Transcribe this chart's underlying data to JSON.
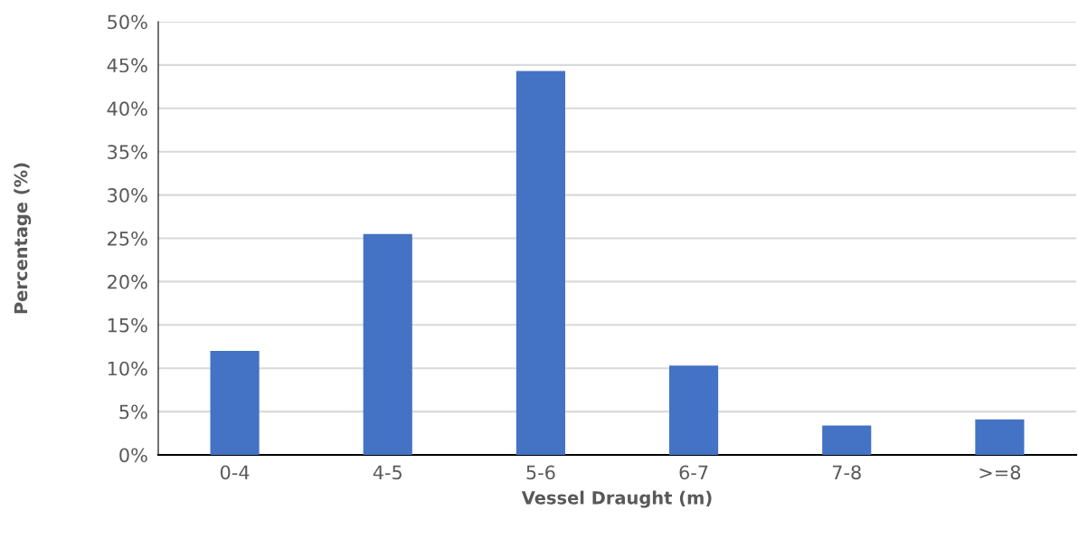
{
  "chart_data": {
    "type": "bar",
    "xlabel": "Vessel Draught (m)",
    "ylabel": "Percentage (%)",
    "categories": [
      "0-4",
      "4-5",
      "5-6",
      "6-7",
      "7-8",
      ">=8"
    ],
    "values": [
      12.0,
      25.5,
      44.3,
      10.3,
      3.4,
      4.1
    ],
    "color": "#4472c4",
    "ylim": [
      0,
      50
    ],
    "yticks": [
      {
        "value": 0,
        "label": "0%"
      },
      {
        "value": 5,
        "label": "5%"
      },
      {
        "value": 10,
        "label": "10%"
      },
      {
        "value": 15,
        "label": "15%"
      },
      {
        "value": 20,
        "label": "20%"
      },
      {
        "value": 25,
        "label": "25%"
      },
      {
        "value": 30,
        "label": "30%"
      },
      {
        "value": 35,
        "label": "35%"
      },
      {
        "value": 40,
        "label": "40%"
      },
      {
        "value": 45,
        "label": "45%"
      },
      {
        "value": 50,
        "label": "50%"
      }
    ],
    "grid": "y"
  }
}
